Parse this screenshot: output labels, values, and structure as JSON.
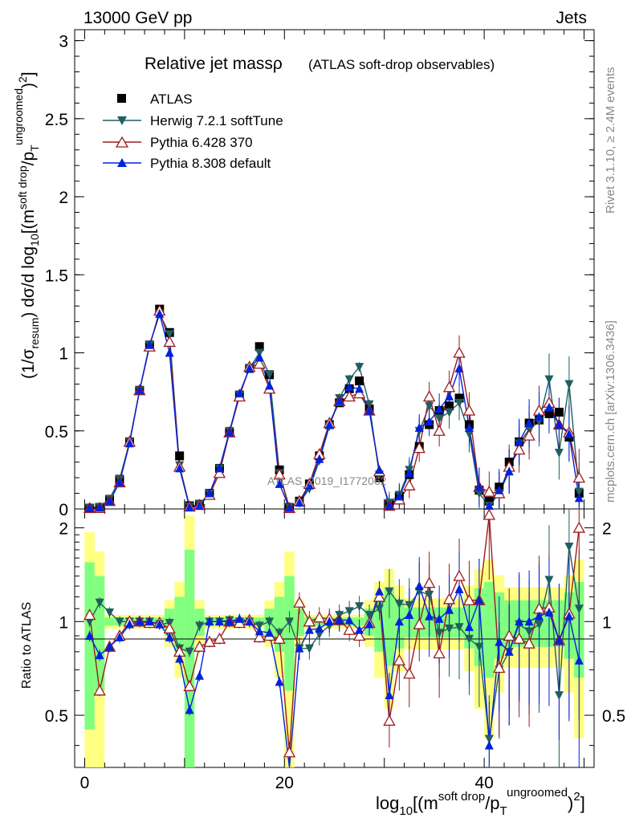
{
  "header": {
    "beam": "13000 GeV pp",
    "process": "Jets"
  },
  "side_labels": {
    "rivet": "Rivet 3.1.10, ≥ 2.4M events",
    "mcplots": "mcplots.cern.ch [arXiv:1306.3436]"
  },
  "watermark": "ATLAS_2019_I1772062",
  "chart_data": [
    {
      "type": "line",
      "title": "Relative jet massρ",
      "subtitle": "(ATLAS soft-drop observables)",
      "ylabel": "(1/σresum) dσ/d log10[(msoft drop/pTungroomed)2]",
      "xlabel": "log10[(msoft drop/pTungroomed)2]",
      "xlim": [
        -1,
        51
      ],
      "ylim": [
        0,
        3.07
      ],
      "x_ticks": [
        0,
        20,
        40
      ],
      "y_ticks": [
        0,
        0.5,
        1,
        1.5,
        2,
        2.5,
        3
      ],
      "x": [
        0.5,
        1.5,
        2.5,
        3.5,
        4.5,
        5.5,
        6.5,
        7.5,
        8.5,
        9.5,
        10.5,
        11.5,
        12.5,
        13.5,
        14.5,
        15.5,
        16.5,
        17.5,
        18.5,
        19.5,
        20.5,
        21.5,
        22.5,
        23.5,
        24.5,
        25.5,
        26.5,
        27.5,
        28.5,
        29.5,
        30.5,
        31.5,
        32.5,
        33.5,
        34.5,
        35.5,
        36.5,
        37.5,
        38.5,
        39.5,
        40.5,
        41.5,
        42.5,
        43.5,
        44.5,
        45.5,
        46.5,
        47.5,
        48.5,
        49.5
      ],
      "legend_position": "top-left",
      "series": [
        {
          "name": "ATLAS",
          "color": "#000000",
          "marker": "square",
          "values": [
            0.005,
            0.01,
            0.06,
            0.19,
            0.43,
            0.76,
            1.05,
            1.28,
            1.13,
            0.34,
            0.02,
            0.03,
            0.1,
            0.26,
            0.49,
            0.73,
            0.9,
            1.04,
            0.86,
            0.25,
            0.01,
            0.05,
            0.16,
            0.34,
            0.54,
            0.68,
            0.77,
            0.82,
            0.64,
            0.2,
            0.03,
            0.08,
            0.22,
            0.4,
            0.54,
            0.63,
            0.66,
            0.71,
            0.54,
            0.12,
            0.05,
            0.14,
            0.3,
            0.43,
            0.55,
            0.57,
            0.61,
            0.62,
            0.46,
            0.1
          ]
        },
        {
          "name": "Herwig 7.2.1 softTune",
          "color": "#1f5f5f",
          "marker": "triangle-down",
          "values": [
            0.005,
            0.012,
            0.065,
            0.19,
            0.43,
            0.76,
            1.05,
            1.25,
            1.12,
            0.28,
            0.015,
            0.03,
            0.1,
            0.26,
            0.5,
            0.73,
            0.9,
            1.0,
            0.86,
            0.23,
            0.01,
            0.04,
            0.13,
            0.31,
            0.53,
            0.71,
            0.83,
            0.91,
            0.67,
            0.22,
            0.04,
            0.09,
            0.25,
            0.5,
            0.66,
            0.58,
            0.62,
            0.68,
            0.48,
            0.1,
            0.02,
            0.1,
            0.24,
            0.42,
            0.51,
            0.56,
            0.83,
            0.36,
            0.8,
            0.11
          ]
        },
        {
          "name": "Pythia 6.428 370",
          "color": "#9b1b1b",
          "marker": "triangle-up-open",
          "values": [
            0.005,
            0.006,
            0.05,
            0.17,
            0.43,
            0.76,
            1.04,
            1.27,
            1.07,
            0.27,
            0.015,
            0.025,
            0.09,
            0.23,
            0.49,
            0.72,
            0.91,
            0.93,
            0.77,
            0.22,
            0.005,
            0.05,
            0.16,
            0.35,
            0.55,
            0.69,
            0.72,
            0.74,
            0.63,
            0.24,
            0.02,
            0.06,
            0.15,
            0.39,
            0.72,
            0.5,
            0.78,
            1.0,
            0.63,
            0.14,
            0.11,
            0.1,
            0.27,
            0.38,
            0.47,
            0.63,
            0.68,
            0.54,
            0.49,
            0.2
          ]
        },
        {
          "name": "Pythia 8.308 default",
          "color": "#0022dd",
          "marker": "triangle-up",
          "values": [
            0.005,
            0.009,
            0.05,
            0.17,
            0.42,
            0.76,
            1.05,
            1.25,
            1.0,
            0.26,
            0.01,
            0.02,
            0.1,
            0.26,
            0.49,
            0.74,
            0.9,
            0.97,
            0.79,
            0.16,
            0.006,
            0.04,
            0.15,
            0.32,
            0.54,
            0.69,
            0.78,
            0.77,
            0.63,
            0.25,
            0.02,
            0.08,
            0.23,
            0.52,
            0.56,
            0.64,
            0.72,
            0.9,
            0.52,
            0.14,
            0.02,
            0.12,
            0.24,
            0.43,
            0.55,
            0.59,
            0.65,
            0.54,
            0.48,
            0.07
          ]
        }
      ]
    },
    {
      "type": "line",
      "ylabel": "Ratio to ATLAS",
      "xlabel": "log10[(msoft drop/pTungroomed)2]",
      "xlim": [
        -1,
        51
      ],
      "ylim": [
        0.34,
        2.3
      ],
      "y_scale": "log",
      "y_ticks": [
        0.5,
        1,
        2
      ],
      "x_ticks": [
        0,
        20,
        40
      ],
      "reference_line": 1,
      "series": [
        {
          "name": "Herwig 7.2.1 softTune",
          "color": "#1f5f5f",
          "values": [
            1.0,
            1.15,
            1.07,
            1.0,
            1.0,
            1.0,
            1.0,
            0.98,
            0.99,
            0.82,
            0.8,
            0.97,
            1.0,
            1.0,
            1.01,
            1.0,
            1.0,
            0.97,
            1.0,
            0.92,
            1.0,
            0.82,
            0.82,
            0.91,
            0.97,
            1.05,
            1.08,
            1.12,
            1.05,
            1.1,
            1.25,
            1.14,
            1.13,
            1.25,
            1.22,
            0.92,
            0.95,
            0.96,
            0.88,
            0.83,
            0.42,
            0.7,
            0.8,
            0.98,
            0.93,
            0.98,
            1.36,
            0.58,
            1.74,
            1.1
          ]
        },
        {
          "name": "Pythia 6.428 370",
          "color": "#9b1b1b",
          "values": [
            1.05,
            0.6,
            0.83,
            0.9,
            1.0,
            1.0,
            0.99,
            0.99,
            0.95,
            0.8,
            0.62,
            0.83,
            0.86,
            0.88,
            1.0,
            0.99,
            1.01,
            0.89,
            0.9,
            0.88,
            0.38,
            1.15,
            1.0,
            1.03,
            1.02,
            1.01,
            0.94,
            0.9,
            0.99,
            1.2,
            0.48,
            0.75,
            0.68,
            0.98,
            1.33,
            0.79,
            1.18,
            1.4,
            1.17,
            1.17,
            2.2,
            0.71,
            0.9,
            0.88,
            0.85,
            1.1,
            1.11,
            0.87,
            1.06,
            2.0
          ]
        },
        {
          "name": "Pythia 8.308 default",
          "color": "#0022dd",
          "values": [
            0.9,
            0.78,
            0.83,
            0.89,
            0.98,
            1.0,
            1.0,
            0.98,
            0.89,
            0.76,
            0.52,
            0.67,
            1.0,
            1.0,
            1.0,
            1.02,
            1.0,
            0.93,
            0.92,
            0.64,
            0.33,
            0.82,
            0.94,
            0.95,
            1.0,
            1.01,
            1.01,
            0.94,
            0.98,
            1.25,
            0.58,
            1.0,
            1.05,
            1.3,
            1.04,
            1.02,
            1.09,
            1.27,
            0.96,
            1.17,
            0.4,
            0.86,
            0.8,
            1.0,
            1.0,
            1.04,
            1.07,
            0.87,
            1.04,
            0.75
          ]
        }
      ]
    }
  ]
}
